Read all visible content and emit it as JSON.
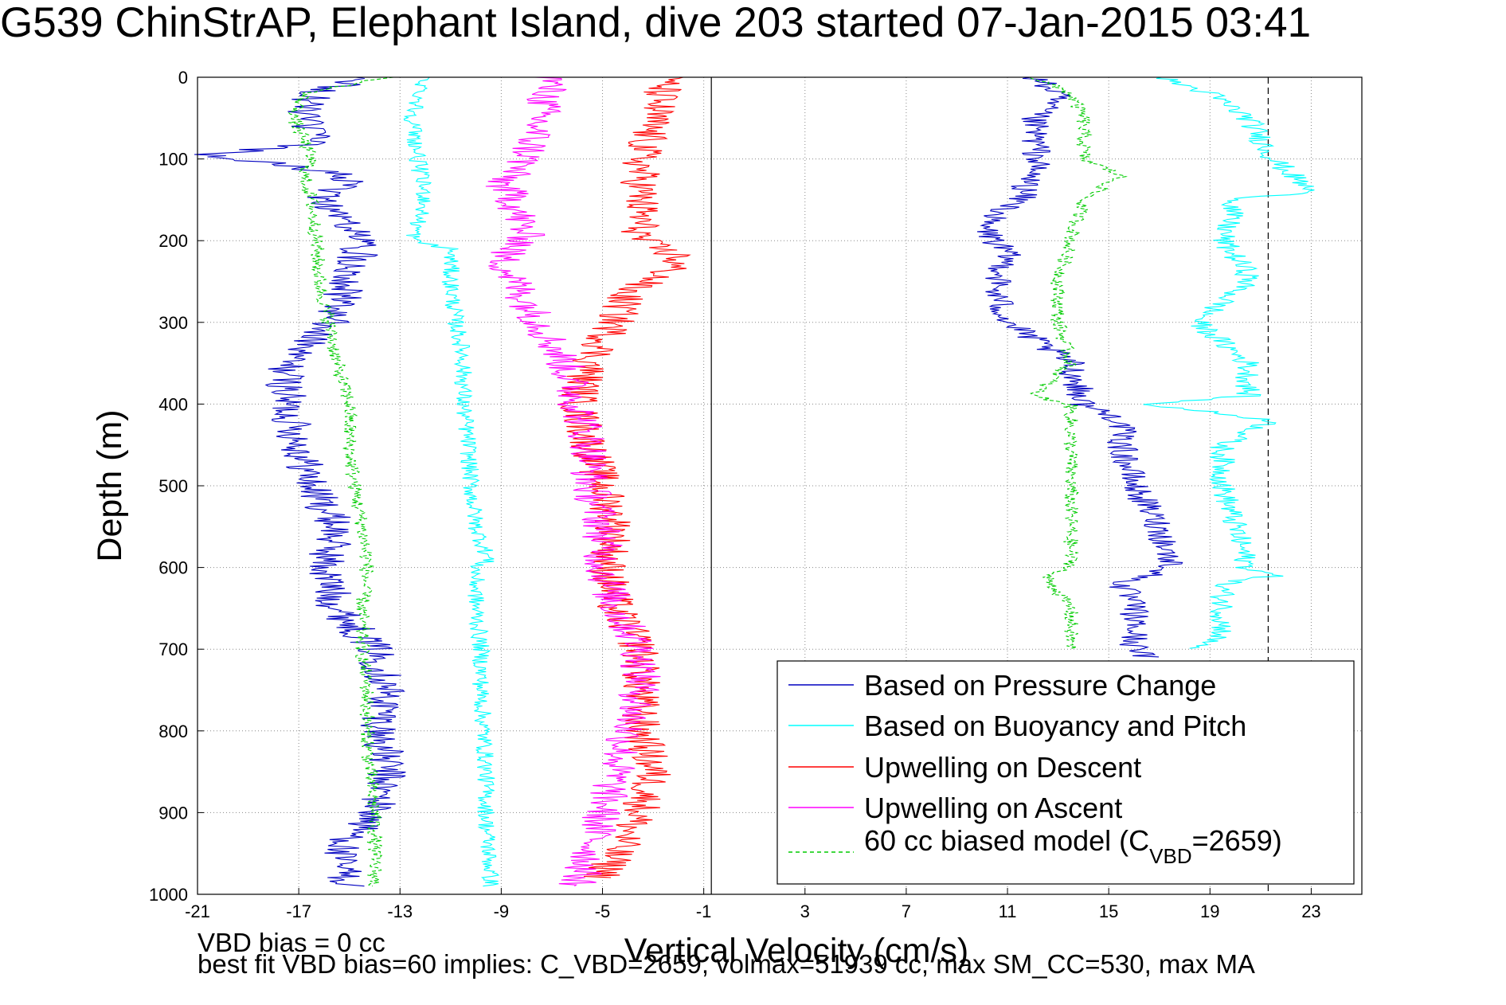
{
  "title": "G539 ChinStrAP, Elephant Island, dive 203 started 07-Jan-2015 03:41",
  "notes": {
    "line1": "VBD bias = 0 cc",
    "line2": "best fit VBD bias=60 implies: C_VBD=2659, volmax=51939 cc, max SM_CC=530, max MA"
  },
  "chart_data": {
    "type": "line",
    "xlabel": "Vertical Velocity (cm/s)",
    "ylabel": "Depth (m)",
    "xlim": [
      -21,
      25
    ],
    "ylim": [
      0,
      1000
    ],
    "y_reversed": true,
    "xticks": [
      -21,
      -17,
      -13,
      -9,
      -5,
      -1,
      3,
      7,
      11,
      15,
      19,
      23
    ],
    "yticks": [
      0,
      100,
      200,
      300,
      400,
      500,
      600,
      700,
      800,
      900,
      1000
    ],
    "grid": "dotted",
    "legend_position": "lower-right",
    "reference_lines": [
      {
        "x": -0.7,
        "style": "solid"
      },
      {
        "x": 21.3,
        "style": "dashed"
      }
    ],
    "colors": {
      "pressure": "#0000c0",
      "buoyancy": "#00ffff",
      "descent": "#ff0000",
      "ascent": "#ff00ff",
      "model": "#00cc00"
    },
    "legend": {
      "pressure": "Based on Pressure Change",
      "buoyancy": "Based on Buoyancy and Pitch",
      "descent": "Upwelling on Descent",
      "ascent": "Upwelling on Ascent",
      "model_prefix": "60 cc biased model (C",
      "model_sub": "VBD",
      "model_suffix": "=2659)"
    },
    "series": [
      {
        "key": "pressure",
        "noise": 0.8,
        "depth": [
          0,
          20,
          50,
          80,
          95,
          120,
          150,
          200,
          250,
          300,
          350,
          400,
          450,
          500,
          550,
          600,
          650,
          700,
          750,
          800,
          850,
          900,
          950,
          990
        ],
        "value": [
          -14.3,
          -16.5,
          -16.8,
          -16.2,
          -20.5,
          -15.0,
          -16.0,
          -14.5,
          -15.0,
          -15.8,
          -17.5,
          -17.5,
          -17.0,
          -16.5,
          -15.5,
          -16.0,
          -15.5,
          -14.0,
          -13.5,
          -13.8,
          -13.5,
          -14.0,
          -15.5,
          -15.0
        ]
      },
      {
        "key": "pressure",
        "noise": 0.6,
        "depth": [
          0,
          20,
          50,
          100,
          150,
          180,
          220,
          260,
          300,
          350,
          400,
          420,
          450,
          500,
          550,
          600,
          620,
          650,
          700,
          710
        ],
        "value": [
          12.0,
          13.0,
          12.0,
          12.2,
          11.5,
          10.0,
          11.0,
          10.5,
          11.0,
          13.5,
          14.0,
          15.5,
          15.5,
          16.0,
          17.0,
          17.5,
          15.5,
          16.0,
          16.0,
          16.5
        ]
      },
      {
        "key": "buoyancy",
        "noise": 0.35,
        "depth": [
          0,
          20,
          50,
          100,
          150,
          200,
          210,
          250,
          300,
          340,
          400,
          450,
          500,
          550,
          590,
          600,
          650,
          700,
          750,
          800,
          850,
          880,
          900,
          950,
          990
        ],
        "value": [
          -12.0,
          -12.2,
          -12.5,
          -12.3,
          -12.0,
          -12.5,
          -11.0,
          -11.0,
          -10.8,
          -10.5,
          -10.5,
          -10.3,
          -10.2,
          -10.0,
          -9.5,
          -10.0,
          -10.0,
          -9.8,
          -9.8,
          -9.7,
          -9.6,
          -9.6,
          -9.6,
          -9.5,
          -9.4
        ]
      },
      {
        "key": "buoyancy",
        "noise": 0.5,
        "depth": [
          0,
          20,
          50,
          100,
          140,
          150,
          200,
          240,
          250,
          300,
          350,
          390,
          400,
          420,
          450,
          500,
          550,
          600,
          610,
          620,
          650,
          680,
          700
        ],
        "value": [
          17.0,
          19.0,
          20.5,
          21.5,
          23.0,
          20.0,
          19.5,
          20.5,
          20.5,
          18.5,
          20.5,
          20.5,
          16.5,
          21.5,
          19.5,
          19.5,
          20.0,
          20.5,
          21.5,
          19.5,
          19.5,
          19.5,
          18.5
        ]
      },
      {
        "key": "descent",
        "noise": 0.8,
        "depth": [
          0,
          50,
          100,
          150,
          200,
          220,
          240,
          260,
          300,
          350,
          400,
          450,
          500,
          550,
          600,
          650,
          700,
          750,
          800,
          850,
          900,
          950,
          980
        ],
        "value": [
          -2.5,
          -3.0,
          -3.5,
          -3.5,
          -3.5,
          -2.0,
          -2.5,
          -4.0,
          -4.5,
          -5.5,
          -6.0,
          -5.5,
          -5.0,
          -4.5,
          -4.8,
          -4.5,
          -3.5,
          -3.5,
          -3.5,
          -3.0,
          -3.5,
          -4.5,
          -5.0
        ]
      },
      {
        "key": "ascent",
        "noise": 0.8,
        "depth": [
          0,
          50,
          100,
          130,
          150,
          200,
          220,
          250,
          300,
          350,
          400,
          450,
          500,
          550,
          600,
          650,
          700,
          750,
          800,
          850,
          900,
          950,
          990
        ],
        "value": [
          -7.0,
          -7.5,
          -8.0,
          -9.0,
          -8.5,
          -8.0,
          -9.0,
          -8.5,
          -7.5,
          -6.5,
          -6.0,
          -5.5,
          -5.5,
          -5.0,
          -5.0,
          -4.5,
          -3.5,
          -3.5,
          -4.0,
          -4.5,
          -5.0,
          -5.5,
          -6.0
        ]
      },
      {
        "key": "model",
        "noise": 0.3,
        "depth": [
          0,
          20,
          50,
          100,
          120,
          150,
          200,
          250,
          300,
          350,
          400,
          450,
          500,
          550,
          590,
          600,
          650,
          700,
          750,
          800,
          850,
          900,
          950,
          990
        ],
        "value": [
          -13.5,
          -16.8,
          -17.2,
          -16.5,
          -16.8,
          -16.5,
          -16.3,
          -16.2,
          -15.8,
          -15.5,
          -15.0,
          -15.0,
          -14.8,
          -14.5,
          -14.3,
          -14.3,
          -14.5,
          -14.5,
          -14.3,
          -14.3,
          -14.2,
          -14.0,
          -14.0,
          -14.0
        ]
      },
      {
        "key": "model",
        "noise": 0.3,
        "depth": [
          0,
          20,
          50,
          100,
          120,
          150,
          200,
          250,
          300,
          350,
          390,
          400,
          450,
          500,
          550,
          600,
          610,
          650,
          700
        ],
        "value": [
          12.0,
          13.5,
          14.0,
          14.0,
          15.5,
          14.0,
          13.5,
          13.0,
          13.0,
          13.5,
          12.0,
          13.5,
          13.5,
          13.5,
          13.5,
          13.5,
          12.5,
          13.5,
          13.5
        ]
      }
    ]
  }
}
